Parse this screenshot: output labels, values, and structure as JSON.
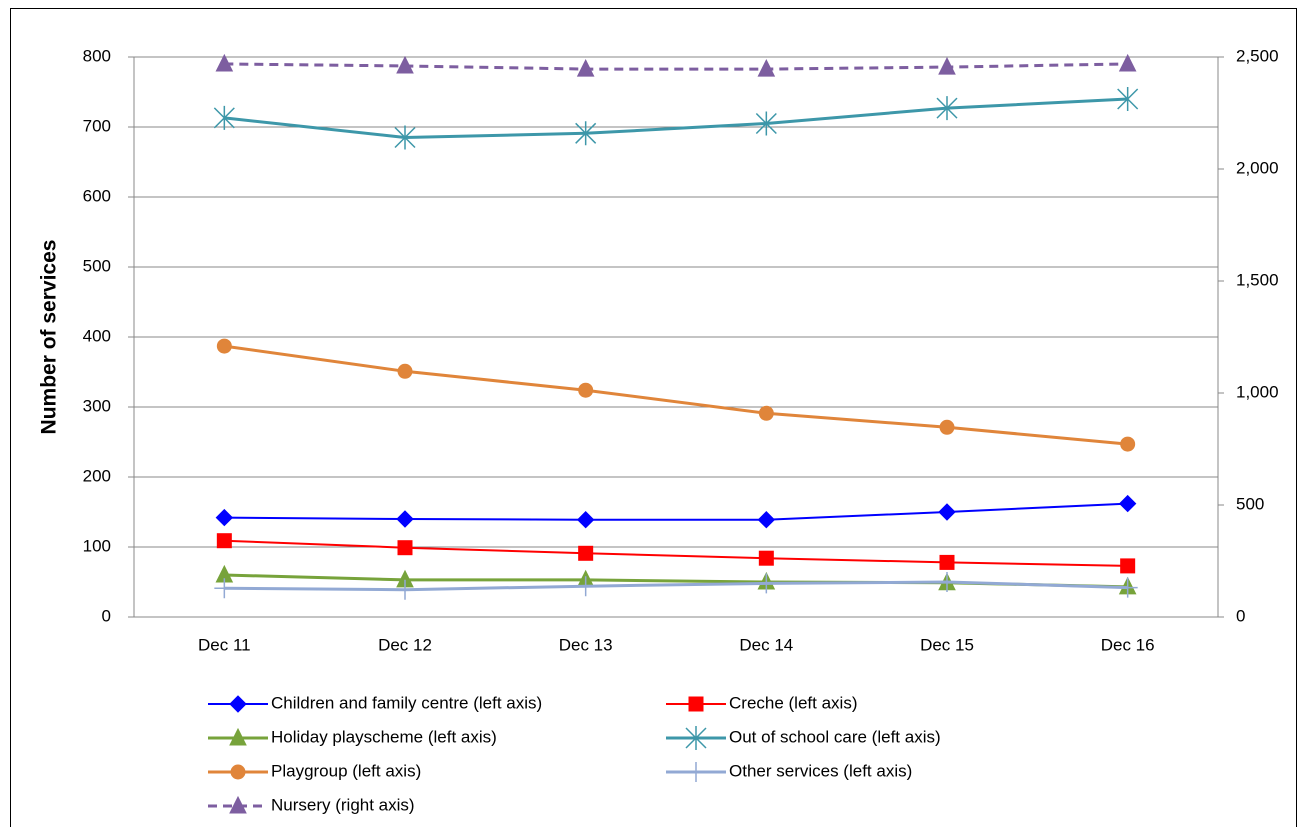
{
  "chart_data": {
    "type": "line",
    "y_label": "Number of services",
    "categories": [
      "Dec 11",
      "Dec 12",
      "Dec 13",
      "Dec 14",
      "Dec 15",
      "Dec 16"
    ],
    "ylim": [
      0,
      800
    ],
    "yticks": [
      0,
      100,
      200,
      300,
      400,
      500,
      600,
      700,
      800
    ],
    "y2lim": [
      0,
      2500
    ],
    "y2ticks": [
      0,
      500,
      {
        "value": 1000,
        "label": "1,000"
      },
      {
        "value": 1500,
        "label": "1,500"
      },
      {
        "value": 2000,
        "label": "2,000"
      },
      {
        "value": 2500,
        "label": "2,500"
      }
    ],
    "grid": true,
    "series": [
      {
        "name": "Children and family centre (left axis)",
        "color": "#0000ff",
        "marker": "diamond",
        "width": 2,
        "values": [
          142,
          140,
          139,
          139,
          150,
          162
        ]
      },
      {
        "name": "Creche (left axis)",
        "color": "#ff0000",
        "marker": "square",
        "width": 2,
        "values": [
          109,
          99,
          91,
          84,
          78,
          73
        ]
      },
      {
        "name": "Holiday playscheme (left axis)",
        "color": "#77a33b",
        "marker": "triangle",
        "width": 3,
        "values": [
          60,
          53,
          53,
          50,
          49,
          43
        ]
      },
      {
        "name": "Out of school care (left axis)",
        "color": "#3d97a9",
        "marker": "asterisk",
        "width": 3,
        "values": [
          713,
          685,
          691,
          705,
          727,
          740
        ]
      },
      {
        "name": "Playgroup (left axis)",
        "color": "#e0853a",
        "marker": "circle",
        "width": 3,
        "values": [
          387,
          351,
          324,
          291,
          271,
          247
        ]
      },
      {
        "name": "Other services (left axis)",
        "color": "#92a9d4",
        "marker": "plus",
        "width": 3,
        "values": [
          41,
          39,
          44,
          48,
          50,
          42
        ]
      },
      {
        "name": "Nursery (right axis)",
        "color": "#7d5ea0",
        "marker": "triangle",
        "width": 3,
        "dash": true,
        "axis": "y2",
        "values": [
          2469,
          2460,
          2446,
          2446,
          2455,
          2469
        ]
      }
    ]
  }
}
